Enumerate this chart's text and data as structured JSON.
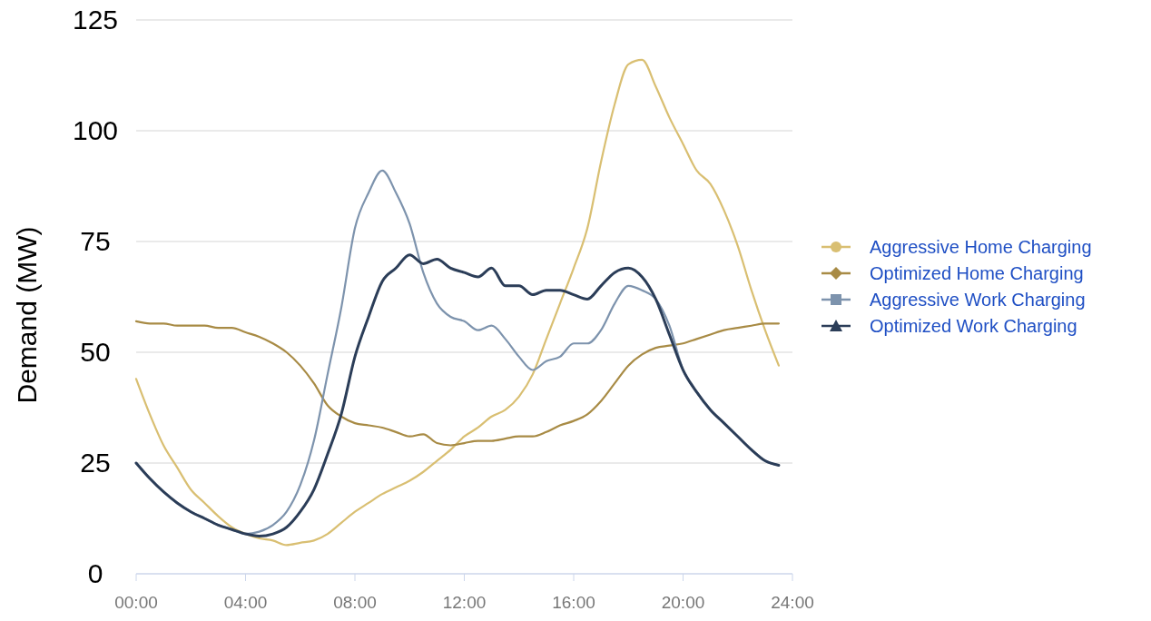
{
  "chart_data": {
    "type": "line",
    "ylabel": "Demand (MW)",
    "x": [
      0,
      0.5,
      1,
      1.5,
      2,
      2.5,
      3,
      3.5,
      4,
      4.5,
      5,
      5.5,
      6,
      6.5,
      7,
      7.5,
      8,
      8.5,
      9,
      9.5,
      10,
      10.5,
      11,
      11.5,
      12,
      12.5,
      13,
      13.5,
      14,
      14.5,
      15,
      15.5,
      16,
      16.5,
      17,
      17.5,
      18,
      18.5,
      19,
      19.5,
      20,
      20.5,
      21,
      21.5,
      22,
      22.5,
      23,
      23.5
    ],
    "series": [
      {
        "name": "Aggressive Home Charging",
        "color": "#d9bf72",
        "values": [
          44,
          36,
          29,
          24,
          19,
          16,
          13,
          10.5,
          9,
          8,
          7.5,
          6.5,
          7,
          7.5,
          9,
          11.5,
          14,
          16,
          18,
          19.5,
          21,
          23,
          25.5,
          28,
          31,
          33,
          35.5,
          37,
          40,
          45,
          53,
          61,
          69,
          78,
          93,
          106,
          115,
          116,
          110,
          103,
          97,
          91,
          88,
          82,
          74,
          64,
          55,
          47
        ]
      },
      {
        "name": "Optimized Home Charging",
        "color": "#a88b45",
        "values": [
          57,
          56.5,
          56.5,
          56,
          56,
          56,
          55.5,
          55.5,
          54.5,
          53.5,
          52,
          50,
          47,
          43,
          38,
          35.5,
          34,
          33.5,
          33,
          32,
          31,
          31.5,
          29.5,
          29,
          29.5,
          30,
          30,
          30.5,
          31,
          31,
          32,
          33.5,
          34.5,
          36,
          39,
          43,
          47,
          49.5,
          51,
          51.5,
          52,
          53,
          54,
          55,
          55.5,
          56,
          56.5,
          56.5
        ]
      },
      {
        "name": "Aggressive Work Charging",
        "color": "#7d93ad",
        "values": [
          25,
          21.5,
          18.5,
          16,
          14,
          12.5,
          11,
          10,
          9,
          9.5,
          11,
          14,
          20,
          30,
          45,
          60,
          78,
          86,
          91,
          86,
          79,
          68,
          61,
          58,
          57,
          55,
          56,
          53,
          49,
          46,
          48,
          49,
          52,
          52,
          55,
          61,
          65,
          64,
          62,
          56,
          46,
          41,
          37,
          34,
          31,
          28,
          25.5,
          24.5
        ]
      },
      {
        "name": "Optimized Work Charging",
        "color": "#2b3d58",
        "values": [
          25,
          21.5,
          18.5,
          16,
          14,
          12.5,
          11,
          10,
          9,
          8.5,
          9,
          10.5,
          14,
          19,
          27,
          36,
          49,
          58,
          66,
          69,
          72,
          70,
          71,
          69,
          68,
          67,
          69,
          65,
          65,
          63,
          64,
          64,
          63,
          62,
          65,
          68,
          69,
          67,
          62,
          54,
          46,
          41,
          37,
          34,
          31,
          28,
          25.5,
          24.5
        ]
      }
    ],
    "xlim": [
      0,
      24
    ],
    "xticks": [
      {
        "value": 0,
        "label": "00:00"
      },
      {
        "value": 4,
        "label": "04:00"
      },
      {
        "value": 8,
        "label": "08:00"
      },
      {
        "value": 12,
        "label": "12:00"
      },
      {
        "value": 16,
        "label": "16:00"
      },
      {
        "value": 20,
        "label": "20:00"
      },
      {
        "value": 24,
        "label": "24:00"
      }
    ],
    "ylim": [
      0,
      125
    ],
    "yticks": [
      0,
      25,
      50,
      75,
      100,
      125
    ],
    "grid": "y",
    "legend": "right"
  }
}
